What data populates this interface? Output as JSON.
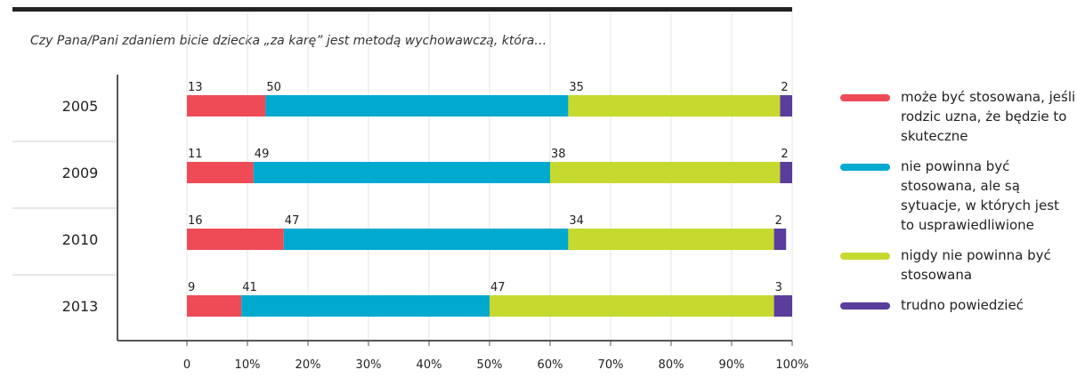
{
  "question": "Czy Pana/Pani zdaniem bicie dziecka „za karę” jest metodą wychowawczą, która…",
  "chart_data": {
    "type": "bar",
    "orientation": "horizontal-stacked",
    "categories": [
      "2005",
      "2009",
      "2010",
      "2013"
    ],
    "series": [
      {
        "name": "może być stosowana, jeśli rodzic uzna, że będzie to skuteczne",
        "color": "#ee4b56",
        "values": [
          13,
          11,
          16,
          9
        ]
      },
      {
        "name": "nie powinna być stosowana, ale są sytuacje, w których jest to usprawiedliwione",
        "color": "#00aacf",
        "values": [
          50,
          49,
          47,
          41
        ]
      },
      {
        "name": "nigdy nie powinna być stosowana",
        "color": "#c6d92e",
        "values": [
          35,
          38,
          34,
          47
        ]
      },
      {
        "name": "trudno powiedzieć",
        "color": "#5b3d9c",
        "values": [
          2,
          2,
          2,
          3
        ]
      }
    ],
    "xticks": [
      "0",
      "10%",
      "20%",
      "30%",
      "40%",
      "50%",
      "60%",
      "70%",
      "80%",
      "90%",
      "100%"
    ],
    "xlim": [
      0,
      100
    ],
    "legend_position": "right"
  }
}
